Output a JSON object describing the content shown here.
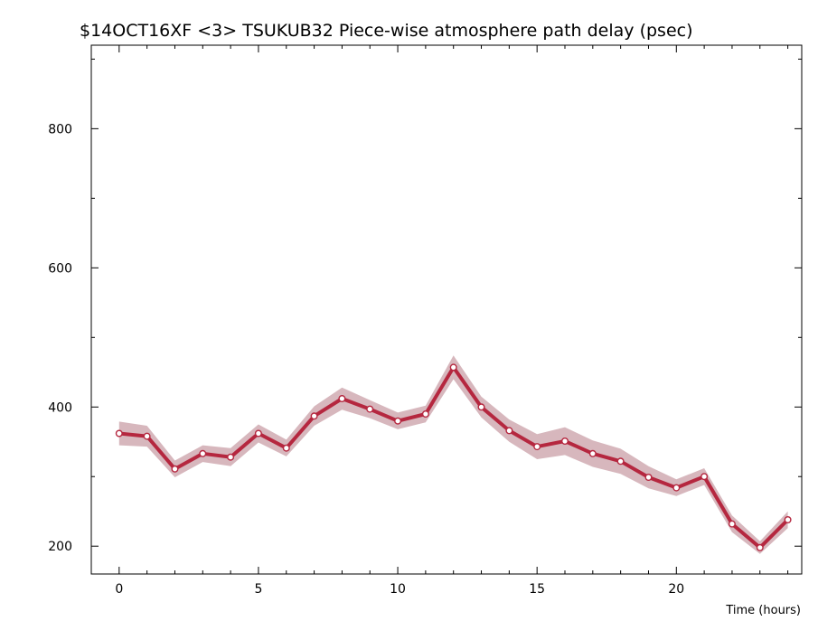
{
  "chart_data": {
    "type": "line",
    "title": "$14OCT16XF <3>  TSUKUB32  Piece-wise atmosphere path delay (psec)",
    "xlabel": "Time (hours)",
    "ylabel": "",
    "xlim": [
      -1,
      24.5
    ],
    "ylim": [
      160,
      920
    ],
    "x_ticks_major": [
      0,
      5,
      10,
      15,
      20
    ],
    "y_ticks_major": [
      200,
      400,
      600,
      800
    ],
    "grid": false,
    "colors": {
      "line": "#b5273f",
      "band": "#d7b7bd",
      "marker_fill": "#ffffff"
    },
    "series": [
      {
        "x": [
          0,
          1,
          2,
          3,
          4,
          5,
          6,
          7,
          8,
          9,
          10,
          11,
          12,
          13,
          14,
          15,
          16,
          17,
          18,
          19,
          20,
          21,
          22,
          23,
          24
        ],
        "values": [
          362,
          358,
          311,
          333,
          328,
          362,
          341,
          387,
          412,
          397,
          380,
          390,
          457,
          400,
          366,
          343,
          351,
          333,
          322,
          299,
          284,
          300,
          232,
          198,
          238
        ],
        "error": [
          17,
          15,
          12,
          12,
          13,
          13,
          12,
          14,
          16,
          13,
          12,
          12,
          17,
          15,
          16,
          18,
          20,
          19,
          18,
          16,
          12,
          12,
          12,
          9,
          12
        ]
      }
    ]
  }
}
